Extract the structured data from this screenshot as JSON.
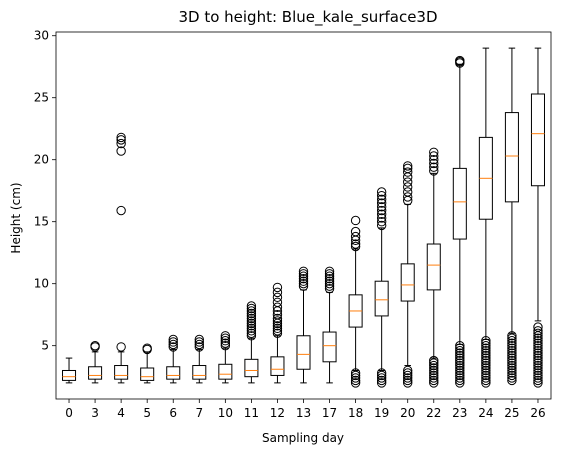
{
  "chart_data": {
    "type": "boxplot",
    "title": "3D to height: Blue_kale_surface3D",
    "xlabel": "Sampling day",
    "ylabel": "Height (cm)",
    "ylim": [
      0.7,
      30.3
    ],
    "yticks": [
      5,
      10,
      15,
      20,
      25,
      30
    ],
    "grid": false,
    "legend": "none",
    "colors": {
      "box": "#000000",
      "median": "#ff7f0e",
      "flier": "#000000"
    },
    "categories": [
      "0",
      "3",
      "4",
      "5",
      "6",
      "7",
      "10",
      "11",
      "12",
      "13",
      "17",
      "18",
      "19",
      "20",
      "22",
      "23",
      "24",
      "25",
      "26"
    ],
    "boxes": [
      {
        "q1": 2.2,
        "median": 2.5,
        "q3": 3.0,
        "whislo": 2.0,
        "whishi": 4.0,
        "fliers": []
      },
      {
        "q1": 2.3,
        "median": 2.6,
        "q3": 3.3,
        "whislo": 2.0,
        "whishi": 4.5,
        "fliers": [
          4.9,
          5.0
        ]
      },
      {
        "q1": 2.3,
        "median": 2.6,
        "q3": 3.4,
        "whislo": 2.0,
        "whishi": 4.5,
        "fliers": [
          4.9,
          15.9,
          20.7,
          21.3,
          21.6,
          21.8
        ]
      },
      {
        "q1": 2.2,
        "median": 2.5,
        "q3": 3.2,
        "whislo": 2.0,
        "whishi": 4.5,
        "fliers": [
          4.7,
          4.8
        ]
      },
      {
        "q1": 2.3,
        "median": 2.6,
        "q3": 3.3,
        "whislo": 2.0,
        "whishi": 4.7,
        "fliers": [
          4.9,
          5.1,
          5.3,
          5.5
        ]
      },
      {
        "q1": 2.3,
        "median": 2.6,
        "q3": 3.4,
        "whislo": 2.0,
        "whishi": 4.7,
        "fliers": [
          4.9,
          5.1,
          5.3,
          5.5
        ]
      },
      {
        "q1": 2.3,
        "median": 2.7,
        "q3": 3.5,
        "whislo": 2.0,
        "whishi": 4.8,
        "fliers": [
          5.0,
          5.2,
          5.4,
          5.6,
          5.8
        ]
      },
      {
        "q1": 2.5,
        "median": 3.0,
        "q3": 3.9,
        "whislo": 2.0,
        "whishi": 5.6,
        "fliers": [
          5.8,
          6.0,
          6.2,
          6.4,
          6.6,
          6.8,
          7.0,
          7.2,
          7.4,
          7.6,
          7.8,
          8.0,
          8.2
        ]
      },
      {
        "q1": 2.6,
        "median": 3.1,
        "q3": 4.1,
        "whislo": 2.0,
        "whishi": 5.8,
        "fliers": [
          6.0,
          6.2,
          6.4,
          6.6,
          6.8,
          7.0,
          7.2,
          7.5,
          7.8,
          8.1,
          8.5,
          8.9,
          9.3,
          9.7
        ]
      },
      {
        "q1": 3.1,
        "median": 4.3,
        "q3": 5.8,
        "whislo": 2.0,
        "whishi": 9.5,
        "fliers": [
          9.8,
          10.0,
          10.2,
          10.4,
          10.6,
          10.8,
          11.0
        ]
      },
      {
        "q1": 3.7,
        "median": 5.0,
        "q3": 6.1,
        "whislo": 2.0,
        "whishi": 9.3,
        "fliers": [
          9.6,
          9.8,
          10.0,
          10.2,
          10.4,
          10.6,
          10.8,
          11.0
        ]
      },
      {
        "q1": 6.5,
        "median": 7.8,
        "q3": 9.1,
        "whislo": 3.0,
        "whishi": 12.8,
        "fliers": [
          2.0,
          2.2,
          2.4,
          2.6,
          2.8,
          13.0,
          13.2,
          13.5,
          13.8,
          14.2,
          15.1
        ]
      },
      {
        "q1": 7.4,
        "median": 8.7,
        "q3": 10.2,
        "whislo": 3.0,
        "whishi": 14.5,
        "fliers": [
          2.0,
          2.2,
          2.4,
          2.6,
          2.8,
          14.7,
          15.0,
          15.3,
          15.6,
          15.9,
          16.2,
          16.5,
          16.8,
          17.1,
          17.4
        ]
      },
      {
        "q1": 8.6,
        "median": 9.9,
        "q3": 11.6,
        "whislo": 3.4,
        "whishi": 16.4,
        "fliers": [
          2.0,
          2.2,
          2.4,
          2.6,
          2.8,
          3.0,
          16.7,
          17.0,
          17.4,
          17.8,
          18.2,
          18.6,
          19.0,
          19.3,
          19.5
        ]
      },
      {
        "q1": 9.5,
        "median": 11.5,
        "q3": 13.2,
        "whislo": 4.0,
        "whishi": 18.9,
        "fliers": [
          2.0,
          2.2,
          2.4,
          2.6,
          2.8,
          3.0,
          3.2,
          3.4,
          3.6,
          3.8,
          19.1,
          19.4,
          19.7,
          20.0,
          20.3,
          20.6
        ]
      },
      {
        "q1": 13.6,
        "median": 16.6,
        "q3": 19.3,
        "whislo": 5.1,
        "whishi": 27.7,
        "fliers": [
          2.0,
          2.2,
          2.4,
          2.6,
          2.8,
          3.0,
          3.2,
          3.4,
          3.6,
          3.8,
          4.0,
          4.2,
          4.4,
          4.6,
          4.8,
          5.0,
          27.8,
          27.9,
          28.0
        ]
      },
      {
        "q1": 15.2,
        "median": 18.5,
        "q3": 21.8,
        "whislo": 5.5,
        "whishi": 29.0,
        "fliers": [
          2.0,
          2.2,
          2.4,
          2.6,
          2.8,
          3.0,
          3.2,
          3.4,
          3.6,
          3.8,
          4.0,
          4.2,
          4.4,
          4.6,
          4.8,
          5.0,
          5.2,
          5.4
        ]
      },
      {
        "q1": 16.6,
        "median": 20.3,
        "q3": 23.8,
        "whislo": 6.0,
        "whishi": 29.0,
        "fliers": [
          2.2,
          2.4,
          2.6,
          2.8,
          3.0,
          3.2,
          3.4,
          3.6,
          3.8,
          4.0,
          4.2,
          4.4,
          4.6,
          4.8,
          5.0,
          5.2,
          5.4,
          5.6,
          5.8
        ]
      },
      {
        "q1": 17.9,
        "median": 22.1,
        "q3": 25.3,
        "whislo": 7.0,
        "whishi": 29.0,
        "fliers": [
          2.0,
          2.2,
          2.4,
          2.6,
          2.8,
          3.0,
          3.2,
          3.4,
          3.6,
          3.8,
          4.0,
          4.2,
          4.4,
          4.6,
          4.8,
          5.0,
          5.2,
          5.4,
          5.6,
          5.8,
          6.0,
          6.2,
          6.5
        ]
      }
    ]
  }
}
